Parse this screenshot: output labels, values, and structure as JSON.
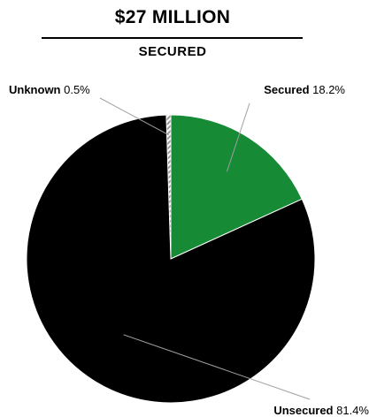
{
  "chart": {
    "title": "$27 MILLION",
    "subtitle": "SECURED"
  },
  "colors": {
    "secured": "#168a35",
    "unsecured": "#000000",
    "unknown_stripe_a": "#ffffff",
    "unknown_stripe_b": "#9a9a9a",
    "leader_line": "#a0a0a0"
  },
  "chart_data": {
    "type": "pie",
    "title": "$27 MILLION",
    "subtitle": "SECURED",
    "slices": [
      {
        "label": "Secured",
        "value": 18.2,
        "display": "18.2%",
        "color": "#168a35",
        "pattern": "solid"
      },
      {
        "label": "Unsecured",
        "value": 81.4,
        "display": "81.4%",
        "color": "#000000",
        "pattern": "solid"
      },
      {
        "label": "Unknown",
        "value": 0.5,
        "display": "0.5%",
        "color": "#9a9a9a",
        "pattern": "hatched"
      }
    ],
    "start_angle_deg": 0,
    "direction": "clockwise"
  }
}
